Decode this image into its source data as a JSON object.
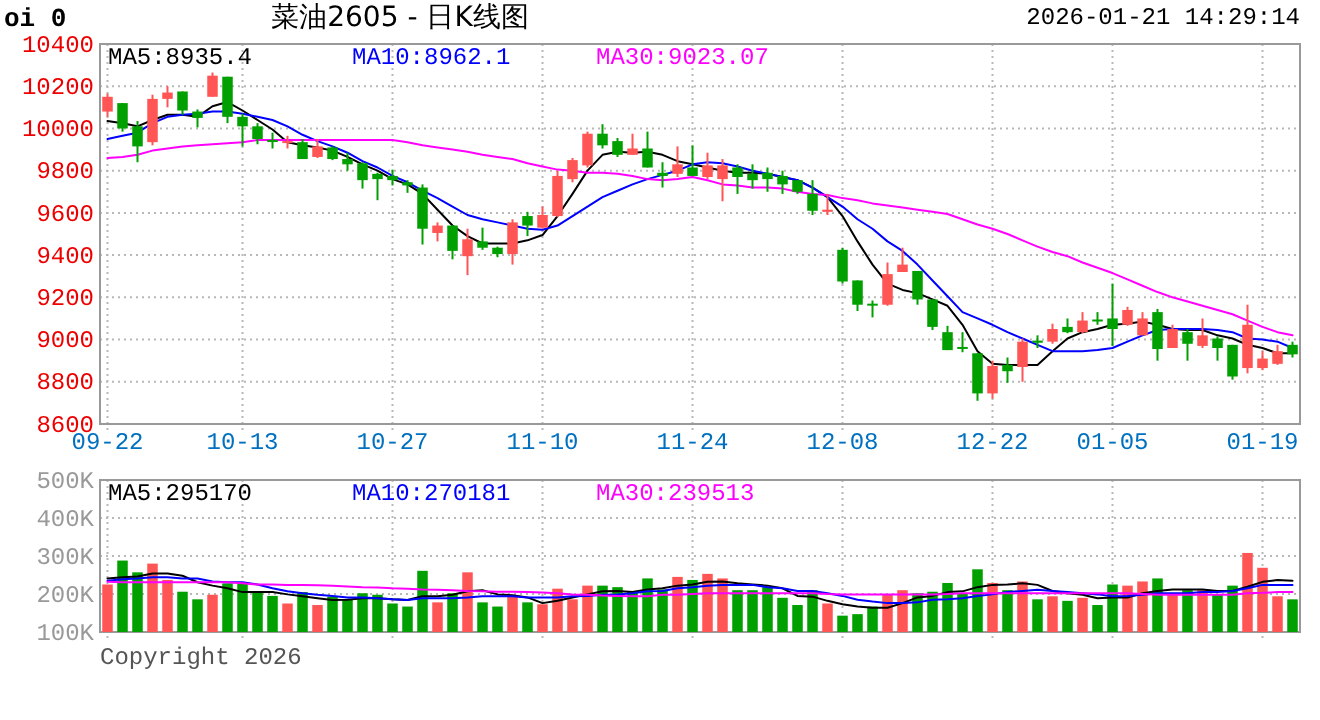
{
  "chart_data": [
    {
      "type": "candlestick",
      "title": "菜油2605 - 日K线图",
      "annotations": [
        "oi 0",
        "2026-01-21 14:29:14"
      ],
      "categories": [
        "09-22",
        null,
        null,
        null,
        null,
        null,
        null,
        null,
        null,
        "10-13",
        null,
        null,
        null,
        null,
        null,
        null,
        null,
        null,
        null,
        "10-27",
        null,
        null,
        null,
        null,
        null,
        null,
        null,
        null,
        null,
        "11-10",
        null,
        null,
        null,
        null,
        null,
        null,
        null,
        null,
        null,
        "11-24",
        null,
        null,
        null,
        null,
        null,
        null,
        null,
        null,
        null,
        "12-08",
        null,
        null,
        null,
        null,
        null,
        null,
        null,
        null,
        null,
        "12-22",
        null,
        null,
        null,
        null,
        null,
        null,
        null,
        "01-05",
        null,
        null,
        null,
        null,
        null,
        null,
        null,
        null,
        null,
        "01-19",
        null,
        null
      ],
      "ohlc": [
        [
          10080,
          10165,
          10055,
          10150
        ],
        [
          10120,
          10120,
          9985,
          10000
        ],
        [
          10010,
          10035,
          9840,
          9915
        ],
        [
          9935,
          10160,
          9920,
          10140
        ],
        [
          10140,
          10200,
          10100,
          10170
        ],
        [
          10175,
          10175,
          10065,
          10085
        ],
        [
          10080,
          10090,
          10005,
          10050
        ],
        [
          10150,
          10265,
          10150,
          10250
        ],
        [
          10245,
          10245,
          10025,
          10055
        ],
        [
          10055,
          10070,
          9915,
          10010
        ],
        [
          10010,
          10025,
          9925,
          9950
        ],
        [
          9945,
          9980,
          9905,
          9940
        ],
        [
          9935,
          9965,
          9905,
          9940
        ],
        [
          9935,
          9950,
          9855,
          9855
        ],
        [
          9865,
          9950,
          9860,
          9915
        ],
        [
          9910,
          9915,
          9850,
          9855
        ],
        [
          9855,
          9885,
          9800,
          9830
        ],
        [
          9835,
          9840,
          9715,
          9755
        ],
        [
          9785,
          9790,
          9660,
          9760
        ],
        [
          9775,
          9805,
          9730,
          9755
        ],
        [
          9745,
          9755,
          9695,
          9730
        ],
        [
          9720,
          9735,
          9450,
          9525
        ],
        [
          9505,
          9555,
          9465,
          9540
        ],
        [
          9540,
          9540,
          9380,
          9420
        ],
        [
          9395,
          9525,
          9305,
          9475
        ],
        [
          9465,
          9530,
          9425,
          9435
        ],
        [
          9435,
          9440,
          9390,
          9405
        ],
        [
          9405,
          9570,
          9355,
          9555
        ],
        [
          9585,
          9605,
          9490,
          9540
        ],
        [
          9530,
          9630,
          9525,
          9590
        ],
        [
          9585,
          9800,
          9580,
          9775
        ],
        [
          9760,
          9860,
          9745,
          9850
        ],
        [
          9825,
          9985,
          9815,
          9975
        ],
        [
          9975,
          10020,
          9905,
          9920
        ],
        [
          9940,
          9955,
          9865,
          9875
        ],
        [
          9875,
          9975,
          9875,
          9905
        ],
        [
          9905,
          9985,
          9815,
          9815
        ],
        [
          9790,
          9840,
          9720,
          9775
        ],
        [
          9785,
          9915,
          9770,
          9830
        ],
        [
          9815,
          9920,
          9775,
          9775
        ],
        [
          9770,
          9885,
          9760,
          9825
        ],
        [
          9760,
          9855,
          9655,
          9825
        ],
        [
          9815,
          9830,
          9690,
          9770
        ],
        [
          9785,
          9830,
          9715,
          9755
        ],
        [
          9790,
          9815,
          9700,
          9760
        ],
        [
          9775,
          9800,
          9690,
          9735
        ],
        [
          9755,
          9755,
          9690,
          9700
        ],
        [
          9690,
          9755,
          9590,
          9610
        ],
        [
          9605,
          9690,
          9590,
          9615
        ],
        [
          9425,
          9435,
          9265,
          9275
        ],
        [
          9280,
          9280,
          9135,
          9165
        ],
        [
          9170,
          9185,
          9105,
          9165
        ],
        [
          9165,
          9365,
          9160,
          9310
        ],
        [
          9320,
          9435,
          9320,
          9355
        ],
        [
          9325,
          9325,
          9165,
          9190
        ],
        [
          9190,
          9190,
          9045,
          9060
        ],
        [
          9035,
          9065,
          8950,
          8950
        ],
        [
          8965,
          9035,
          8940,
          8960
        ],
        [
          8935,
          8935,
          8710,
          8745
        ],
        [
          8745,
          8900,
          8720,
          8875
        ],
        [
          8880,
          8915,
          8795,
          8850
        ],
        [
          8870,
          9005,
          8800,
          8990
        ],
        [
          8995,
          9020,
          8960,
          8985
        ],
        [
          8990,
          9075,
          8980,
          9050
        ],
        [
          9060,
          9100,
          9030,
          9035
        ],
        [
          9035,
          9130,
          9030,
          9090
        ],
        [
          9095,
          9130,
          9070,
          9090
        ],
        [
          9100,
          9265,
          8970,
          9050
        ],
        [
          9070,
          9155,
          9065,
          9140
        ],
        [
          9020,
          9130,
          9020,
          9100
        ],
        [
          9130,
          9145,
          8900,
          8955
        ],
        [
          8960,
          9070,
          8960,
          9050
        ],
        [
          9035,
          9050,
          8900,
          8980
        ],
        [
          8970,
          9100,
          8960,
          9020
        ],
        [
          9005,
          9015,
          8900,
          8960
        ],
        [
          8975,
          8975,
          8810,
          8825
        ],
        [
          8865,
          9165,
          8840,
          9070
        ],
        [
          8865,
          8945,
          8855,
          8910
        ],
        [
          8885,
          8975,
          8880,
          8945
        ],
        [
          8975,
          8990,
          8915,
          8930
        ]
      ],
      "colors": [
        "#ff5555",
        "#00a000",
        "#00a000",
        "#ff5555",
        "#ff5555",
        "#00a000",
        "#00a000",
        "#ff5555",
        "#00a000",
        "#00a000",
        "#00a000",
        "#00a000",
        "#ff5555",
        "#00a000",
        "#ff5555",
        "#00a000",
        "#00a000",
        "#00a000",
        "#00a000",
        "#00a000",
        "#00a000",
        "#00a000",
        "#ff5555",
        "#00a000",
        "#ff5555",
        "#00a000",
        "#00a000",
        "#ff5555",
        "#00a000",
        "#ff5555",
        "#ff5555",
        "#ff5555",
        "#ff5555",
        "#00a000",
        "#00a000",
        "#ff5555",
        "#00a000",
        "#00a000",
        "#ff5555",
        "#00a000",
        "#ff5555",
        "#ff5555",
        "#00a000",
        "#00a000",
        "#00a000",
        "#00a000",
        "#00a000",
        "#00a000",
        "#ff5555",
        "#00a000",
        "#00a000",
        "#00a000",
        "#ff5555",
        "#ff5555",
        "#00a000",
        "#00a000",
        "#00a000",
        "#00a000",
        "#00a000",
        "#ff5555",
        "#00a000",
        "#ff5555",
        "#00a000",
        "#ff5555",
        "#00a000",
        "#ff5555",
        "#00a000",
        "#00a000",
        "#ff5555",
        "#ff5555",
        "#00a000",
        "#ff5555",
        "#00a000",
        "#ff5555",
        "#00a000",
        "#00a000",
        "#ff5555",
        "#ff5555",
        "#ff5555",
        "#00a000"
      ],
      "series": [
        {
          "type": "line",
          "name": "MA5:8935.4",
          "color": "#000000",
          "values": [
            10035,
            10025,
            10010,
            10040,
            10065,
            10065,
            10055,
            10105,
            10125,
            10085,
            10040,
            9995,
            9935,
            9920,
            9910,
            9895,
            9865,
            9830,
            9800,
            9760,
            9735,
            9690,
            9615,
            9540,
            9490,
            9455,
            9455,
            9455,
            9470,
            9495,
            9585,
            9690,
            9800,
            9875,
            9890,
            9885,
            9890,
            9875,
            9845,
            9830,
            9815,
            9800,
            9790,
            9790,
            9785,
            9770,
            9755,
            9720,
            9675,
            9585,
            9465,
            9355,
            9265,
            9235,
            9220,
            9190,
            9160,
            9070,
            8945,
            8885,
            8880,
            8880,
            8880,
            8945,
            9005,
            9035,
            9050,
            9070,
            9075,
            9085,
            9070,
            9050,
            9045,
            9045,
            9020,
            9005,
            8975,
            8960,
            8935,
            8935
          ]
        },
        {
          "type": "line",
          "name": "MA10:8962.1",
          "color": "#0000ff",
          "values": [
            9950,
            9965,
            9980,
            10025,
            10055,
            10065,
            10070,
            10080,
            10080,
            10070,
            10055,
            10040,
            10010,
            9970,
            9940,
            9915,
            9885,
            9845,
            9815,
            9775,
            9745,
            9705,
            9670,
            9630,
            9590,
            9570,
            9555,
            9540,
            9525,
            9520,
            9540,
            9585,
            9630,
            9675,
            9705,
            9735,
            9760,
            9780,
            9800,
            9830,
            9840,
            9835,
            9820,
            9800,
            9785,
            9770,
            9755,
            9720,
            9675,
            9630,
            9570,
            9525,
            9465,
            9420,
            9355,
            9280,
            9205,
            9130,
            9100,
            9070,
            9035,
            9005,
            8975,
            8945,
            8945,
            8945,
            8950,
            8960,
            8990,
            9020,
            9045,
            9050,
            9050,
            9050,
            9045,
            9035,
            9005,
            9000,
            8990,
            8960
          ]
        },
        {
          "type": "line",
          "name": "MA30:9023.07",
          "color": "#ff00ff",
          "values": [
            9860,
            9865,
            9875,
            9895,
            9905,
            9915,
            9920,
            9925,
            9930,
            9935,
            9945,
            9945,
            9945,
            9945,
            9945,
            9945,
            9945,
            9945,
            9945,
            9945,
            9935,
            9920,
            9910,
            9900,
            9890,
            9875,
            9865,
            9855,
            9835,
            9820,
            9805,
            9800,
            9790,
            9790,
            9785,
            9775,
            9760,
            9755,
            9760,
            9770,
            9755,
            9735,
            9730,
            9720,
            9720,
            9715,
            9700,
            9690,
            9685,
            9670,
            9660,
            9645,
            9635,
            9625,
            9615,
            9605,
            9595,
            9570,
            9545,
            9525,
            9500,
            9470,
            9440,
            9415,
            9395,
            9365,
            9340,
            9315,
            9285,
            9255,
            9225,
            9200,
            9180,
            9160,
            9140,
            9120,
            9090,
            9060,
            9035,
            9020
          ]
        }
      ],
      "ylim": [
        8600,
        10400
      ],
      "yticks": [
        8600,
        8800,
        9000,
        9200,
        9400,
        9600,
        9800,
        10000,
        10200,
        10400
      ],
      "grid": true,
      "legend": "top left"
    },
    {
      "type": "bar",
      "annotations": [
        "Copyright 2026"
      ],
      "categories": [
        null,
        null,
        null,
        null,
        null,
        null,
        null,
        null,
        null,
        null,
        null,
        null,
        null,
        null,
        null,
        null,
        null,
        null,
        null,
        null,
        null,
        null,
        null,
        null,
        null,
        null,
        null,
        null,
        null,
        null,
        null,
        null,
        null,
        null,
        null,
        null,
        null,
        null,
        null,
        null,
        null,
        null,
        null,
        null,
        null,
        null,
        null,
        null,
        null,
        null,
        null,
        null,
        null,
        null,
        null,
        null,
        null,
        null,
        null,
        null,
        null,
        null,
        null,
        null,
        null,
        null,
        null,
        null,
        null,
        null,
        null,
        null,
        null,
        null,
        null,
        null,
        null,
        null,
        null,
        null
      ],
      "series": [
        {
          "type": "bar",
          "colors": [
            "#ff5555",
            "#00a000",
            "#00a000",
            "#ff5555",
            "#ff5555",
            "#00a000",
            "#00a000",
            "#ff5555",
            "#00a000",
            "#00a000",
            "#00a000",
            "#00a000",
            "#ff5555",
            "#00a000",
            "#ff5555",
            "#00a000",
            "#00a000",
            "#00a000",
            "#00a000",
            "#00a000",
            "#00a000",
            "#00a000",
            "#ff5555",
            "#00a000",
            "#ff5555",
            "#00a000",
            "#00a000",
            "#ff5555",
            "#00a000",
            "#ff5555",
            "#ff5555",
            "#ff5555",
            "#ff5555",
            "#00a000",
            "#00a000",
            "#00a000",
            "#00a000",
            "#00a000",
            "#ff5555",
            "#00a000",
            "#ff5555",
            "#ff5555",
            "#00a000",
            "#00a000",
            "#00a000",
            "#00a000",
            "#00a000",
            "#00a000",
            "#ff5555",
            "#00a000",
            "#00a000",
            "#00a000",
            "#ff5555",
            "#ff5555",
            "#00a000",
            "#00a000",
            "#00a000",
            "#00a000",
            "#00a000",
            "#ff5555",
            "#00a000",
            "#ff5555",
            "#00a000",
            "#ff5555",
            "#00a000",
            "#ff5555",
            "#00a000",
            "#00a000",
            "#ff5555",
            "#ff5555",
            "#00a000",
            "#ff5555",
            "#00a000",
            "#ff5555",
            "#00a000",
            "#00a000",
            "#ff5555",
            "#ff5555",
            "#ff5555",
            "#00a000"
          ],
          "values": [
            225000,
            288000,
            257000,
            280000,
            237000,
            206000,
            186000,
            198000,
            228000,
            228000,
            207000,
            195000,
            175000,
            205000,
            171000,
            193000,
            186000,
            202000,
            198000,
            175000,
            167000,
            261000,
            178000,
            202000,
            257000,
            178000,
            167000,
            194000,
            178000,
            173000,
            214000,
            186000,
            222000,
            222000,
            218000,
            205000,
            241000,
            212000,
            245000,
            237000,
            253000,
            241000,
            210000,
            210000,
            218000,
            190000,
            171000,
            210000,
            175000,
            143000,
            147000,
            167000,
            198000,
            210000,
            202000,
            206000,
            229000,
            202000,
            265000,
            229000,
            210000,
            233000,
            186000,
            194000,
            182000,
            190000,
            171000,
            225000,
            222000,
            233000,
            241000,
            198000,
            210000,
            210000,
            198000,
            222000,
            308000,
            269000,
            194000,
            186000
          ]
        },
        {
          "type": "line",
          "name": "MA5:295170",
          "color": "#000000",
          "values": [
            241000,
            244000,
            246000,
            254000,
            254000,
            248000,
            231000,
            222000,
            215000,
            205000,
            205000,
            205000,
            199000,
            194000,
            189000,
            184000,
            185000,
            189000,
            189000,
            186000,
            184000,
            194000,
            194000,
            198000,
            207000,
            210000,
            199000,
            197000,
            191000,
            176000,
            182000,
            191000,
            199000,
            207000,
            208000,
            205000,
            212000,
            215000,
            222000,
            225000,
            232000,
            233000,
            228000,
            225000,
            222000,
            215000,
            195000,
            193000,
            182000,
            173000,
            167000,
            164000,
            164000,
            176000,
            191000,
            195000,
            205000,
            207000,
            218000,
            224000,
            225000,
            228000,
            224000,
            208000,
            202000,
            198000,
            189000,
            191000,
            191000,
            202000,
            208000,
            212000,
            212000,
            212000,
            208000,
            208000,
            219000,
            232000,
            237000,
            235000
          ]
        },
        {
          "type": "line",
          "name": "MA10:270181",
          "color": "#0000ff",
          "values": [
            235000,
            239000,
            241000,
            244000,
            244000,
            241000,
            241000,
            233000,
            231000,
            231000,
            225000,
            215000,
            207000,
            202000,
            198000,
            195000,
            191000,
            191000,
            189000,
            186000,
            184000,
            189000,
            189000,
            189000,
            191000,
            194000,
            194000,
            194000,
            191000,
            191000,
            191000,
            194000,
            195000,
            198000,
            199000,
            202000,
            207000,
            208000,
            215000,
            218000,
            222000,
            224000,
            224000,
            224000,
            218000,
            215000,
            208000,
            208000,
            202000,
            195000,
            185000,
            180000,
            176000,
            176000,
            178000,
            185000,
            186000,
            189000,
            195000,
            199000,
            205000,
            208000,
            211000,
            208000,
            205000,
            202000,
            199000,
            194000,
            195000,
            198000,
            202000,
            202000,
            202000,
            205000,
            205000,
            208000,
            215000,
            224000,
            224000,
            224000
          ]
        },
        {
          "type": "line",
          "name": "MA30:239513",
          "color": "#ff00ff",
          "values": [
            232000,
            231000,
            231000,
            231000,
            231000,
            231000,
            231000,
            231000,
            231000,
            228000,
            225000,
            225000,
            224000,
            224000,
            223000,
            222000,
            220000,
            218000,
            217000,
            215000,
            214000,
            212000,
            211000,
            210000,
            208000,
            207000,
            206000,
            206000,
            205000,
            204000,
            202000,
            199000,
            198000,
            196000,
            195000,
            194000,
            194000,
            198000,
            198000,
            200000,
            202000,
            202000,
            202000,
            202000,
            202000,
            202000,
            202000,
            202000,
            200000,
            199000,
            199000,
            199000,
            199000,
            199000,
            199000,
            199000,
            200000,
            202000,
            202000,
            202000,
            202000,
            202000,
            202000,
            202000,
            202000,
            202000,
            202000,
            202000,
            202000,
            200000,
            198000,
            198000,
            198000,
            198000,
            198000,
            198000,
            202000,
            203000,
            205000,
            205000
          ]
        }
      ],
      "ylim": [
        100000,
        500000
      ],
      "yticks": [
        {
          "value": 100000,
          "label": "100K"
        },
        {
          "value": 200000,
          "label": "200K"
        },
        {
          "value": 300000,
          "label": "300K"
        },
        {
          "value": 400000,
          "label": "400K"
        },
        {
          "value": 500000,
          "label": "500K"
        }
      ],
      "grid": true,
      "legend": "top left"
    }
  ]
}
